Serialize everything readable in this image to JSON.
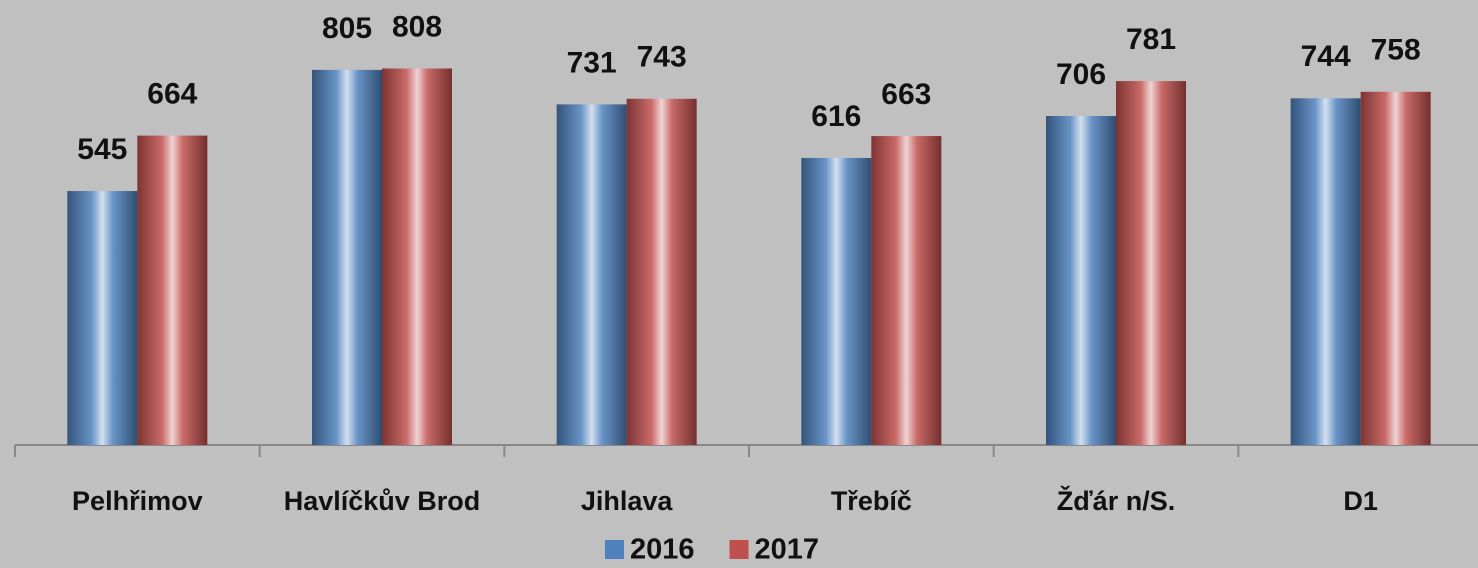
{
  "chart_data": {
    "type": "bar",
    "categories": [
      "Pelhřimov",
      "Havlíčkův Brod",
      "Jihlava",
      "Třebíč",
      "Žďár n/S.",
      "D1"
    ],
    "series": [
      {
        "name": "2016",
        "color": "#4f81bd",
        "values": [
          545,
          805,
          731,
          616,
          706,
          744
        ]
      },
      {
        "name": "2017",
        "color": "#c0504d",
        "values": [
          664,
          808,
          743,
          663,
          781,
          758
        ]
      }
    ],
    "ylim": [
      0,
      955
    ],
    "legend": "bottom"
  }
}
